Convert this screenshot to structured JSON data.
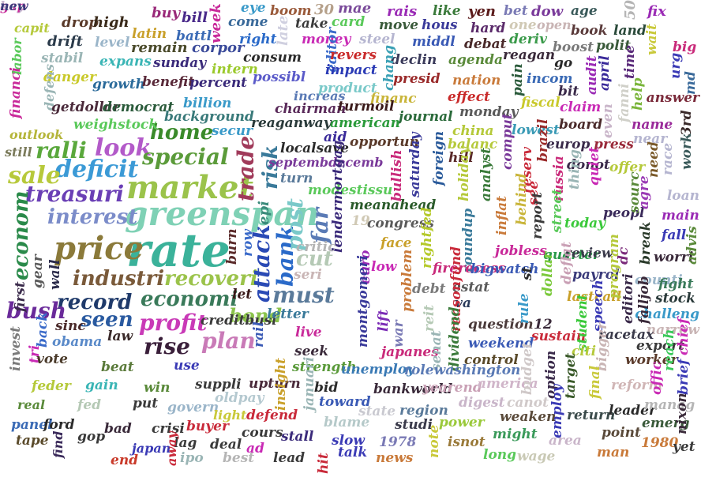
{
  "words": [
    {
      "t": "rate",
      "c": "#3bb29a"
    },
    {
      "t": "greenspan",
      "c": "#7fd1b5"
    },
    {
      "t": "market",
      "c": "#9bc34b"
    },
    {
      "t": "price",
      "c": "#8b7a3a"
    },
    {
      "t": "deficit",
      "c": "#3b9ad6"
    },
    {
      "t": "treasuri",
      "c": "#6a3fb5"
    },
    {
      "t": "interest",
      "c": "#7b8cc9"
    },
    {
      "t": "sale",
      "c": "#b7c93a"
    },
    {
      "t": "ralli",
      "c": "#5aa83c"
    },
    {
      "t": "look",
      "c": "#b35ac9"
    },
    {
      "t": "special",
      "c": "#5b9b3a"
    },
    {
      "t": "home",
      "c": "#3a8a2a"
    },
    {
      "t": "industri",
      "c": "#7a5a3a"
    },
    {
      "t": "record",
      "c": "#1f3a6a"
    },
    {
      "t": "econom",
      "c": "#2a8a4a"
    },
    {
      "t": "bush",
      "c": "#6a2a9a"
    },
    {
      "t": "seen",
      "c": "#2a5aa0"
    },
    {
      "t": "economi",
      "c": "#3a7a5a"
    },
    {
      "t": "recoveri",
      "c": "#9bc34b"
    },
    {
      "t": "profit",
      "c": "#c93ab7"
    },
    {
      "t": "bond",
      "c": "#8bc34b"
    },
    {
      "t": "rise",
      "c": "#3a1f3a"
    },
    {
      "t": "plan",
      "c": "#c97ab7"
    },
    {
      "t": "must",
      "c": "#5a7a9a"
    },
    {
      "t": "attack",
      "c": "#2a4ab5"
    },
    {
      "t": "bank",
      "c": "#2a6ac9"
    },
    {
      "t": "post",
      "c": "#7ac9c9"
    },
    {
      "t": "far",
      "c": "#5a7ab5"
    },
    {
      "t": "cut",
      "c": "#b5c9b5"
    },
    {
      "t": "trade",
      "c": "#a03a5a"
    },
    {
      "t": "risk",
      "c": "#3a7a9a"
    },
    {
      "t": "epi",
      "c": "#3a8a7a"
    },
    {
      "t": "drop",
      "c": "#5a3a2a"
    },
    {
      "t": "high",
      "c": "#3a2a1a"
    },
    {
      "t": "buy",
      "c": "#9a2a7a"
    },
    {
      "t": "bill",
      "c": "#4a2a8a"
    },
    {
      "t": "week",
      "c": "#c92a9a"
    },
    {
      "t": "eye",
      "c": "#3a9ac9"
    },
    {
      "t": "boom",
      "c": "#9a5a3a"
    },
    {
      "t": "30",
      "c": "#b5a08a"
    },
    {
      "t": "mae",
      "c": "#7a4a9a"
    },
    {
      "t": "rais",
      "c": "#9a2ab5"
    },
    {
      "t": "like",
      "c": "#3a7a3a"
    },
    {
      "t": "yen",
      "c": "#5a1a1a"
    },
    {
      "t": "bet",
      "c": "#7a7ab5"
    },
    {
      "t": "dow",
      "c": "#7a3a9a"
    },
    {
      "t": "age",
      "c": "#3a5a5a"
    },
    {
      "t": "50",
      "c": "#b5b5b5"
    },
    {
      "t": "fix",
      "c": "#9a2ab5"
    },
    {
      "t": "capit",
      "c": "#b5c93a"
    },
    {
      "t": "latin",
      "c": "#c9a02a"
    },
    {
      "t": "battl",
      "c": "#3a6ab5"
    },
    {
      "t": "come",
      "c": "#3a6a9a"
    },
    {
      "t": "late",
      "c": "#d0d0e0"
    },
    {
      "t": "take",
      "c": "#3a3a3a"
    },
    {
      "t": "card",
      "c": "#5ac95a"
    },
    {
      "t": "move",
      "c": "#3a5a3a"
    },
    {
      "t": "hous",
      "c": "#3a3a9a"
    },
    {
      "t": "hard",
      "c": "#5a2a6a"
    },
    {
      "t": "one",
      "c": "#d0c9b5"
    },
    {
      "t": "open",
      "c": "#c9b5b5"
    },
    {
      "t": "book",
      "c": "#5a3a3a"
    },
    {
      "t": "land",
      "c": "#2a4a3a"
    },
    {
      "t": "labor",
      "c": "#5ac95a"
    },
    {
      "t": "drift",
      "c": "#2a3a4a"
    },
    {
      "t": "level",
      "c": "#9ab5c9"
    },
    {
      "t": "remain",
      "c": "#4a4a2a"
    },
    {
      "t": "corpor",
      "c": "#3a4a9a"
    },
    {
      "t": "right",
      "c": "#2a6ac9"
    },
    {
      "t": "money",
      "c": "#c92ab5"
    },
    {
      "t": "steel",
      "c": "#b5b5d0"
    },
    {
      "t": "middl",
      "c": "#3a5ab5"
    },
    {
      "t": "debat",
      "c": "#4a2a2a"
    },
    {
      "t": "deriv",
      "c": "#3a9a4a"
    },
    {
      "t": "boost",
      "c": "#7a7a7a"
    },
    {
      "t": "polit",
      "c": "#3a5a3a"
    },
    {
      "t": "wait",
      "c": "#c9c93a"
    },
    {
      "t": "big",
      "c": "#c92a7a"
    },
    {
      "t": "stabil",
      "c": "#9ab5b5"
    },
    {
      "t": "expans",
      "c": "#3ab5b5"
    },
    {
      "t": "sunday",
      "c": "#3a2a7a"
    },
    {
      "t": "consum",
      "c": "#2a2a2a"
    },
    {
      "t": "editor",
      "c": "#3a6ac9"
    },
    {
      "t": "revers",
      "c": "#c92a2a"
    },
    {
      "t": "declin",
      "c": "#3a3a5a"
    },
    {
      "t": "agenda",
      "c": "#5a8a3a"
    },
    {
      "t": "reagan",
      "c": "#3a2a3a"
    },
    {
      "t": "go",
      "c": "#2a2a2a"
    },
    {
      "t": "audit",
      "c": "#9a2ab5"
    },
    {
      "t": "april",
      "c": "#3a2a9a"
    },
    {
      "t": "time",
      "c": "#5a2a7a"
    },
    {
      "t": "urg",
      "c": "#3a3ab5"
    },
    {
      "t": "md",
      "c": "#3a6a9a"
    },
    {
      "t": "danger",
      "c": "#c9c92a"
    },
    {
      "t": "growth",
      "c": "#2a6a9a"
    },
    {
      "t": "benefit",
      "c": "#5a2a3a"
    },
    {
      "t": "percent",
      "c": "#3a2a7a"
    },
    {
      "t": "intern",
      "c": "#9ac92a"
    },
    {
      "t": "possibl",
      "c": "#5a5ac9"
    },
    {
      "t": "impact",
      "c": "#2a3ab5"
    },
    {
      "t": "chang",
      "c": "#3aa0b5"
    },
    {
      "t": "presid",
      "c": "#9a2a2a"
    },
    {
      "t": "nation",
      "c": "#c97a3a"
    },
    {
      "t": "incom",
      "c": "#3a6ab5"
    },
    {
      "t": "bit",
      "c": "#3a2a4a"
    },
    {
      "t": "pain",
      "c": "#2a5a3a"
    },
    {
      "t": "help",
      "c": "#7ab53a"
    },
    {
      "t": "answer",
      "c": "#7a2a3a"
    },
    {
      "t": "defens",
      "c": "#9ab5b5"
    },
    {
      "t": "financi",
      "c": "#c92a9a"
    },
    {
      "t": "getdollar",
      "c": "#4a2a3a"
    },
    {
      "t": "democrat",
      "c": "#2a5a3a"
    },
    {
      "t": "billion",
      "c": "#3a9ac9"
    },
    {
      "t": "increas",
      "c": "#5a7ab5"
    },
    {
      "t": "product",
      "c": "#7ac9c9"
    },
    {
      "t": "financ",
      "c": "#c9b53a"
    },
    {
      "t": "effect",
      "c": "#c92a2a"
    },
    {
      "t": "fiscal",
      "c": "#c9c92a"
    },
    {
      "t": "claim",
      "c": "#c92ab5"
    },
    {
      "t": "fanni",
      "c": "#d0d0c9"
    },
    {
      "t": "outlook",
      "c": "#b5b53a"
    },
    {
      "t": "weighstock",
      "c": "#5ac95a"
    },
    {
      "t": "background",
      "c": "#3a7a7a"
    },
    {
      "t": "chairman",
      "c": "#5a2a5a"
    },
    {
      "t": "turmoil",
      "c": "#3a1a1a"
    },
    {
      "t": "journal",
      "c": "#2a6a3a"
    },
    {
      "t": "monday",
      "c": "#5a5a5a"
    },
    {
      "t": "even",
      "c": "#c9b5c9"
    },
    {
      "t": "still",
      "c": "#7a7a5a"
    },
    {
      "t": "secur",
      "c": "#3a9ac9"
    },
    {
      "t": "reaganway",
      "c": "#2a3a3a"
    },
    {
      "t": "american",
      "c": "#2a9a3a"
    },
    {
      "t": "china",
      "c": "#b5c93a"
    },
    {
      "t": "lowest",
      "c": "#3a9ab5"
    },
    {
      "t": "board",
      "c": "#4a2a2a"
    },
    {
      "t": "name",
      "c": "#9a2a9a"
    },
    {
      "t": "near",
      "c": "#b5b5d0"
    },
    {
      "t": "3rd",
      "c": "#3a2a2a"
    },
    {
      "t": "localsave",
      "c": "#2a2a2a"
    },
    {
      "t": "aid",
      "c": "#3a2a9a"
    },
    {
      "t": "opportun",
      "c": "#5a3a2a"
    },
    {
      "t": "balanc",
      "c": "#b5c93a"
    },
    {
      "t": "comput",
      "c": "#7a3a9a"
    },
    {
      "t": "europ",
      "c": "#3a2a4a"
    },
    {
      "t": "press",
      "c": "#9a2a3a"
    },
    {
      "t": "septembdecemb",
      "c": "#7a3a9a"
    },
    {
      "t": "hill",
      "c": "#5a2a2a"
    },
    {
      "t": "foreign",
      "c": "#2a5a9a"
    },
    {
      "t": "analyst",
      "c": "#3a7a3a"
    },
    {
      "t": "reserv",
      "c": "#c92a3a"
    },
    {
      "t": "brazil",
      "c": "#9a2a2a"
    },
    {
      "t": "donot",
      "c": "#3a2a4a"
    },
    {
      "t": "offer",
      "c": "#b5c93a"
    },
    {
      "t": "need",
      "c": "#7a5a2a"
    },
    {
      "t": "race",
      "c": "#b5b5d0"
    },
    {
      "t": "work",
      "c": "#3a5a5a"
    },
    {
      "t": "turn",
      "c": "#5a7a9a"
    },
    {
      "t": "modestissu",
      "c": "#5ac95a"
    },
    {
      "t": "bullish",
      "c": "#c92a7a"
    },
    {
      "t": "saturday",
      "c": "#3a3a9a"
    },
    {
      "t": "holiday",
      "c": "#b5c93a"
    },
    {
      "t": "behind",
      "c": "#c9b53a"
    },
    {
      "t": "see",
      "c": "#c92a3a"
    },
    {
      "t": "russia",
      "c": "#c92a7a"
    },
    {
      "t": "thing",
      "c": "#9ab5b5"
    },
    {
      "t": "quiet",
      "c": "#c92ab5"
    },
    {
      "t": "peopl",
      "c": "#3a2a5a"
    },
    {
      "t": "sourc",
      "c": "#5a8a3a"
    },
    {
      "t": "agre",
      "c": "#9a3ab5"
    },
    {
      "t": "loan",
      "c": "#b5b5d0"
    },
    {
      "t": "lendermortgag",
      "c": "#3a2a7a"
    },
    {
      "t": "meanahead",
      "c": "#2a5a2a"
    },
    {
      "t": "19",
      "c": "#d0c9b5"
    },
    {
      "t": "congress",
      "c": "#5a5a5a"
    },
    {
      "t": "inflat",
      "c": "#c97a3a"
    },
    {
      "t": "report",
      "c": "#3a3a3a"
    },
    {
      "t": "street",
      "c": "#5ac95a"
    },
    {
      "t": "today",
      "c": "#3ac93a"
    },
    {
      "t": "main",
      "c": "#9a2ab5"
    },
    {
      "t": "fall",
      "c": "#3a3ab5"
    },
    {
      "t": "face",
      "c": "#c9a02a"
    },
    {
      "t": "rightfed",
      "c": "#b5c92a"
    },
    {
      "t": "roundup",
      "c": "#3a7a9a"
    },
    {
      "t": "jobless",
      "c": "#c92a9a"
    },
    {
      "t": "quarter",
      "c": "#2a9a4a"
    },
    {
      "t": "review",
      "c": "#3a3a4a"
    },
    {
      "t": "dc",
      "c": "#7a2a7a"
    },
    {
      "t": "break",
      "c": "#2a3a2a"
    },
    {
      "t": "worri",
      "c": "#3a2a3a"
    },
    {
      "t": "advis",
      "c": "#5a8a3a"
    },
    {
      "t": "burn",
      "c": "#5a2a2a"
    },
    {
      "t": "row",
      "c": "#3a6ac9"
    },
    {
      "t": "critic",
      "c": "#b5b5b5"
    },
    {
      "t": "euro",
      "c": "#9a2ab5"
    },
    {
      "t": "low",
      "c": "#c92ab5"
    },
    {
      "t": "firerecess",
      "c": "#c92a7a"
    },
    {
      "t": "bigwatch",
      "c": "#3a5ab5"
    },
    {
      "t": "st",
      "c": "#2a2a2a"
    },
    {
      "t": "dollar",
      "c": "#7ac93a"
    },
    {
      "t": "deflat",
      "c": "#c9a0b5"
    },
    {
      "t": "payrol",
      "c": "#3a3a7a"
    },
    {
      "t": "counti",
      "c": "#9ab5c9"
    },
    {
      "t": "fight",
      "c": "#3a7a5a"
    },
    {
      "t": "seri",
      "c": "#c9b5b5"
    },
    {
      "t": "debt",
      "c": "#7a7a7a"
    },
    {
      "t": "estat",
      "c": "#5a5a5a"
    },
    {
      "t": "let",
      "c": "#3a1a1a"
    },
    {
      "t": "problem",
      "c": "#c97a3a"
    },
    {
      "t": "va",
      "c": "#2a3a5a"
    },
    {
      "t": "lastcall",
      "c": "#c9a02a"
    },
    {
      "t": "program",
      "c": "#b5c93a"
    },
    {
      "t": "stock",
      "c": "#2a3a3a"
    },
    {
      "t": "first",
      "c": "#3a2a4a"
    },
    {
      "t": "gear",
      "c": "#5a5a5a"
    },
    {
      "t": "wall",
      "c": "#2a2a4a"
    },
    {
      "t": "creditbusi",
      "c": "#3a3a3a"
    },
    {
      "t": "letter",
      "c": "#3a7a9a"
    },
    {
      "t": "lift",
      "c": "#7a2ab5"
    },
    {
      "t": "reit",
      "c": "#b5c9b5"
    },
    {
      "t": "reasonfund",
      "c": "#c92a3a"
    },
    {
      "t": "challeng",
      "c": "#3a9ac9"
    },
    {
      "t": "falljob",
      "c": "#3a2a3a"
    },
    {
      "t": "editori",
      "c": "#3a2a4a"
    },
    {
      "t": "sinc",
      "c": "#4a2a2a"
    },
    {
      "t": "back",
      "c": "#3a6ac9"
    },
    {
      "t": "obama",
      "c": "#5a8ac9"
    },
    {
      "t": "rail",
      "c": "#3a5ab5"
    },
    {
      "t": "live",
      "c": "#c92a9a"
    },
    {
      "t": "montgomeri",
      "c": "#3a3a9a"
    },
    {
      "t": "war",
      "c": "#7a7ab5"
    },
    {
      "t": "question",
      "c": "#4a3a3a"
    },
    {
      "t": "rule",
      "c": "#3a9ac9"
    },
    {
      "t": "12",
      "c": "#3a2a3a"
    },
    {
      "t": "speech",
      "c": "#3a3ab5"
    },
    {
      "t": "narrow",
      "c": "#c9b5b5"
    },
    {
      "t": "invest",
      "c": "#7a7a7a"
    },
    {
      "t": "tri",
      "c": "#c92ab5"
    },
    {
      "t": "law",
      "c": "#3a2a2a"
    },
    {
      "t": "seek",
      "c": "#3a2a3a"
    },
    {
      "t": "japanes",
      "c": "#c92a7a"
    },
    {
      "t": "senat",
      "c": "#9ab5b5"
    },
    {
      "t": "dividend",
      "c": "#3a7a3a"
    },
    {
      "t": "sustain",
      "c": "#c92a3a"
    },
    {
      "t": "student",
      "c": "#3ac93a"
    },
    {
      "t": "racetax",
      "c": "#3a3a4a"
    },
    {
      "t": "export",
      "c": "#3a3a3a"
    },
    {
      "t": "chief",
      "c": "#c92ab5"
    },
    {
      "t": "vote",
      "c": "#4a3a2a"
    },
    {
      "t": "beat",
      "c": "#5a7a3a"
    },
    {
      "t": "use",
      "c": "#3a3ab5"
    },
    {
      "t": "strength",
      "c": "#5a9a3a"
    },
    {
      "t": "unemploy",
      "c": "#3a7ab5"
    },
    {
      "t": "rolewashington",
      "c": "#5a7ab5"
    },
    {
      "t": "control",
      "c": "#5a4a2a"
    },
    {
      "t": "weekend",
      "c": "#3a5ab5"
    },
    {
      "t": "citi",
      "c": "#b5c93a"
    },
    {
      "t": "bigger",
      "c": "#c9b5b5"
    },
    {
      "t": "worker",
      "c": "#5a3a2a"
    },
    {
      "t": "reach",
      "c": "#3ac95a"
    },
    {
      "t": "feder",
      "c": "#b5c93a"
    },
    {
      "t": "gain",
      "c": "#3ab5b5"
    },
    {
      "t": "win",
      "c": "#5a8a3a"
    },
    {
      "t": "suppli",
      "c": "#3a3a3a"
    },
    {
      "t": "upturn",
      "c": "#4a2a3a"
    },
    {
      "t": "insight",
      "c": "#c9a02a"
    },
    {
      "t": "januari",
      "c": "#9ab5b5"
    },
    {
      "t": "bid",
      "c": "#2a2a2a"
    },
    {
      "t": "bankworld",
      "c": "#3a2a3a"
    },
    {
      "t": "yearend",
      "c": "#c9a0b5"
    },
    {
      "t": "america",
      "c": "#d0b5c9"
    },
    {
      "t": "budget",
      "c": "#d0c9c9"
    },
    {
      "t": "option",
      "c": "#3a2a4a"
    },
    {
      "t": "target",
      "c": "#3a5a2a"
    },
    {
      "t": "final",
      "c": "#c9c93a"
    },
    {
      "t": "reform",
      "c": "#d0b5b5"
    },
    {
      "t": "offic",
      "c": "#c92ab5"
    },
    {
      "t": "brief",
      "c": "#3a3ab5"
    },
    {
      "t": "real",
      "c": "#5a8a3a"
    },
    {
      "t": "fed",
      "c": "#b5c9b5"
    },
    {
      "t": "put",
      "c": "#3a3a3a"
    },
    {
      "t": "govern",
      "c": "#9ab5c9"
    },
    {
      "t": "oldpay",
      "c": "#b5c9d0"
    },
    {
      "t": "light",
      "c": "#c9c93a"
    },
    {
      "t": "defend",
      "c": "#c92a3a"
    },
    {
      "t": "toward",
      "c": "#3a5ab5"
    },
    {
      "t": "state",
      "c": "#c9c9d0"
    },
    {
      "t": "region",
      "c": "#5a7a9a"
    },
    {
      "t": "digest",
      "c": "#c9b5c9"
    },
    {
      "t": "canot",
      "c": "#d0c9c9"
    },
    {
      "t": "weaken",
      "c": "#5a4a3a"
    },
    {
      "t": "return",
      "c": "#3a4a4a"
    },
    {
      "t": "leader",
      "c": "#2a2a2a"
    },
    {
      "t": "manag",
      "c": "#b5b5b5"
    },
    {
      "t": "panel",
      "c": "#3a6ab5"
    },
    {
      "t": "ford",
      "c": "#2a2a2a"
    },
    {
      "t": "bad",
      "c": "#3a2a3a"
    },
    {
      "t": "crisi",
      "c": "#3a3a3a"
    },
    {
      "t": "buyer",
      "c": "#c92a3a"
    },
    {
      "t": "cours",
      "c": "#3a3a3a"
    },
    {
      "t": "stall",
      "c": "#3a2a7a"
    },
    {
      "t": "blame",
      "c": "#b5c9c9"
    },
    {
      "t": "studi",
      "c": "#3a3a4a"
    },
    {
      "t": "power",
      "c": "#9ac93a"
    },
    {
      "t": "employ",
      "c": "#3a3ab5"
    },
    {
      "t": "point",
      "c": "#5a4a3a"
    },
    {
      "t": "emerg",
      "c": "#3a5a3a"
    },
    {
      "t": "nixon",
      "c": "#3a2a3a"
    },
    {
      "t": "tape",
      "c": "#5a4a2a"
    },
    {
      "t": "gop",
      "c": "#3a3a3a"
    },
    {
      "t": "lag",
      "c": "#3a3a3a"
    },
    {
      "t": "deal",
      "c": "#3a3a3a"
    },
    {
      "t": "slow",
      "c": "#3a3ab5"
    },
    {
      "t": "1978",
      "c": "#7a7ab5"
    },
    {
      "t": "note",
      "c": "#c9c93a"
    },
    {
      "t": "isnot",
      "c": "#9a7a3a"
    },
    {
      "t": "might",
      "c": "#3a9a5a"
    },
    {
      "t": "area",
      "c": "#c9b5c9"
    },
    {
      "t": "find",
      "c": "#3a2a5a"
    },
    {
      "t": "japan",
      "c": "#3a3ab5"
    },
    {
      "t": "away",
      "c": "#c92a3a"
    },
    {
      "t": "ipo",
      "c": "#9ab5b5"
    },
    {
      "t": "best",
      "c": "#b5b5b5"
    },
    {
      "t": "ad",
      "c": "#c92ab5"
    },
    {
      "t": "lead",
      "c": "#3a3a3a"
    },
    {
      "t": "hit",
      "c": "#c92a3a"
    },
    {
      "t": "talk",
      "c": "#3a3ab5"
    },
    {
      "t": "news",
      "c": "#c97a3a"
    },
    {
      "t": "long",
      "c": "#5ac95a"
    },
    {
      "t": "wage",
      "c": "#c9c9b5"
    },
    {
      "t": "man",
      "c": "#c97a3a"
    },
    {
      "t": "1980",
      "c": "#c97a3a"
    },
    {
      "t": "yet",
      "c": "#3a3a3a"
    },
    {
      "t": "end",
      "c": "#c93a2a"
    },
    {
      "t": "gap",
      "c": "#c92a9a"
    },
    {
      "t": "key",
      "c": "#c9b5d0"
    },
    {
      "t": "new",
      "c": "#3a3a7a"
    }
  ]
}
